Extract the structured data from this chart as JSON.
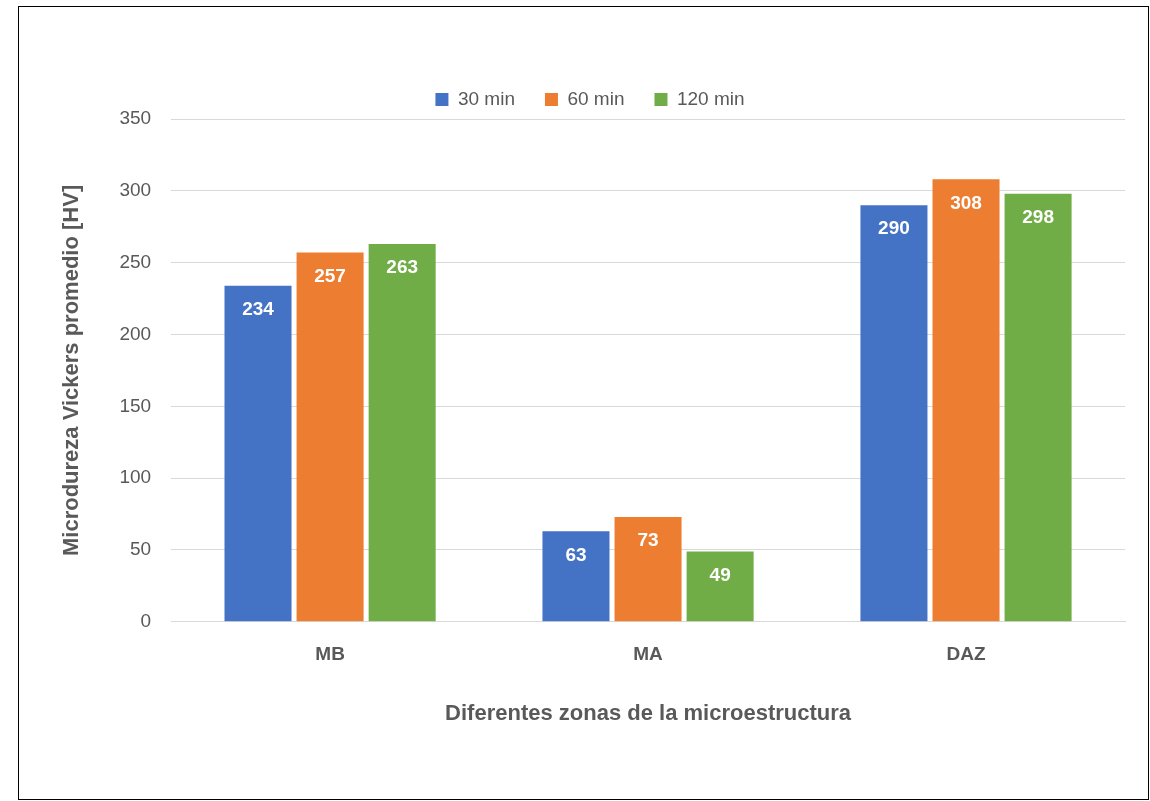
{
  "chart_data": {
    "type": "bar",
    "xlabel": "Diferentes zonas de la microestructura",
    "ylabel": "Microdureza Vickers promedio [HV]",
    "categories": [
      "MB",
      "MA",
      "DAZ"
    ],
    "series": [
      {
        "name": "30 min",
        "color": "#4472c4",
        "values": [
          234,
          63,
          290
        ]
      },
      {
        "name": "60 min",
        "color": "#ed7d31",
        "values": [
          257,
          73,
          308
        ]
      },
      {
        "name": "120 min",
        "color": "#70ad47",
        "values": [
          263,
          49,
          298
        ]
      }
    ],
    "ylim": [
      0,
      350
    ],
    "yticks": [
      0,
      50,
      100,
      150,
      200,
      250,
      300,
      350
    ],
    "grid": "y",
    "legend": "top",
    "data_labels": true
  }
}
